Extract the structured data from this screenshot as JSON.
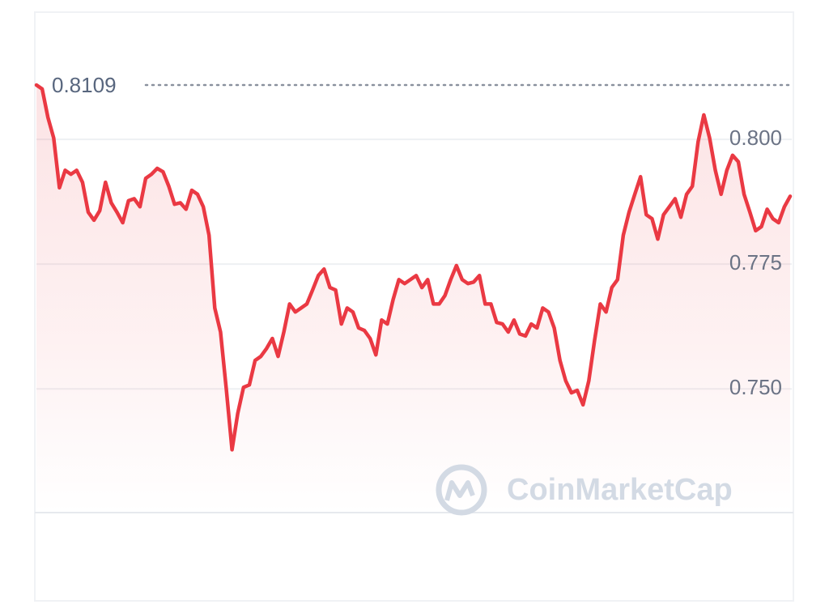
{
  "chart_data": {
    "type": "line",
    "watermark": "CoinMarketCap",
    "ylim": [
      0.7252,
      0.8255
    ],
    "yticks": [
      {
        "value": 0.75,
        "label": "0.750"
      },
      0.775,
      {
        "value": 0.8,
        "label": "0.800"
      }
    ],
    "grid": true,
    "reference_line": 0.8109,
    "series": [
      {
        "color": "#ea3943",
        "values": [
          0.8109,
          0.8101,
          0.8044,
          0.8003,
          0.7903,
          0.7938,
          0.793,
          0.7938,
          0.7914,
          0.7854,
          0.7838,
          0.7857,
          0.7914,
          0.7873,
          0.7854,
          0.7833,
          0.7877,
          0.7881,
          0.7865,
          0.7922,
          0.793,
          0.7942,
          0.7935,
          0.7906,
          0.787,
          0.7873,
          0.786,
          0.7898,
          0.789,
          0.7865,
          0.7808,
          0.7662,
          0.7614,
          0.75,
          0.7378,
          0.7451,
          0.7503,
          0.7508,
          0.7557,
          0.7565,
          0.7581,
          0.7601,
          0.7565,
          0.7614,
          0.767,
          0.7654,
          0.7662,
          0.767,
          0.7698,
          0.7727,
          0.774,
          0.7703,
          0.7698,
          0.763,
          0.7662,
          0.7654,
          0.7622,
          0.7617,
          0.7601,
          0.7568,
          0.7638,
          0.763,
          0.7679,
          0.7719,
          0.7711,
          0.7719,
          0.7727,
          0.7703,
          0.7719,
          0.767,
          0.767,
          0.7687,
          0.7719,
          0.7747,
          0.7719,
          0.7711,
          0.7714,
          0.7727,
          0.767,
          0.767,
          0.7633,
          0.763,
          0.7614,
          0.7638,
          0.761,
          0.7606,
          0.763,
          0.7622,
          0.7662,
          0.7654,
          0.7622,
          0.7557,
          0.7516,
          0.7492,
          0.7497,
          0.7468,
          0.7516,
          0.7597,
          0.767,
          0.7654,
          0.7703,
          0.7719,
          0.7808,
          0.7854,
          0.789,
          0.7925,
          0.7849,
          0.7841,
          0.78,
          0.7849,
          0.7865,
          0.7881,
          0.7844,
          0.789,
          0.7906,
          0.7995,
          0.8049,
          0.8003,
          0.7938,
          0.789,
          0.7938,
          0.7968,
          0.7955,
          0.789,
          0.7854,
          0.7817,
          0.7825,
          0.786,
          0.7841,
          0.7833,
          0.7865,
          0.7886
        ]
      }
    ]
  }
}
